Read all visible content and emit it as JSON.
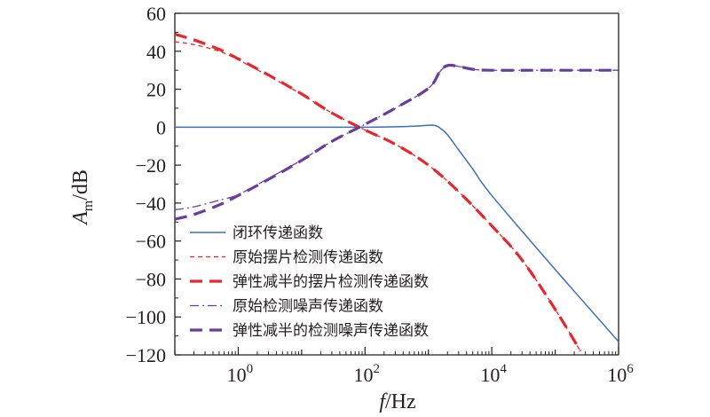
{
  "chart_data": {
    "type": "line",
    "title": "",
    "xlabel": "f/Hz",
    "xlabel_italic": "f",
    "xlabel_rest": "/Hz",
    "ylabel_italic": "A",
    "ylabel_sub": "m",
    "ylabel_rest": "/dB",
    "xscale": "log",
    "xlim": [
      0.1,
      1000000
    ],
    "ylim": [
      -120,
      60
    ],
    "grid": false,
    "legend_position": "lower-left",
    "y_ticks": [
      60,
      40,
      20,
      0,
      -20,
      -40,
      -60,
      -80,
      -100,
      -120
    ],
    "y_tick_labels": [
      "60",
      "40",
      "20",
      "0",
      "−20",
      "−40",
      "−60",
      "−80",
      "−100",
      "−120"
    ],
    "x_major_ticks": [
      1,
      100,
      10000,
      1000000
    ],
    "x_tick_base": "10",
    "x_tick_exponents": [
      "0",
      "2",
      "4",
      "6"
    ],
    "series": [
      {
        "name": "闭环传递函数",
        "color": "#3b6fb6",
        "style": "solid",
        "width": 1.5,
        "x": [
          0.1,
          1,
          10,
          100,
          300,
          600,
          1000,
          1300,
          1600,
          2000,
          3000,
          5000,
          10000,
          100000,
          1000000
        ],
        "y": [
          0,
          0,
          0,
          0,
          0.2,
          0.5,
          1,
          0.8,
          -1,
          -4,
          -12,
          -22,
          -36,
          -75,
          -113
        ]
      },
      {
        "name": "原始摆片检测传递函数",
        "color": "#e8262d",
        "style": "thin-dash",
        "width": 1.3,
        "x": [
          0.1,
          0.2,
          0.5,
          1,
          3,
          10,
          30,
          100,
          300,
          1000,
          3000,
          10000,
          30000,
          100000,
          250000
        ],
        "y": [
          45,
          43.5,
          40,
          35.5,
          27,
          17.3,
          7.5,
          -1.5,
          -9,
          -20,
          -34,
          -52,
          -70,
          -96,
          -118
        ]
      },
      {
        "name": "弹性减半的摆片检测传递函数",
        "color": "#e8262d",
        "style": "thick-dash",
        "width": 3.2,
        "x": [
          0.1,
          0.2,
          0.5,
          1,
          3,
          10,
          30,
          100,
          300,
          1000,
          3000,
          10000,
          30000,
          100000,
          250000
        ],
        "y": [
          49,
          46,
          41,
          36,
          27.5,
          17.5,
          7.5,
          -1.5,
          -9,
          -20,
          -34,
          -52,
          -70,
          -96,
          -118
        ]
      },
      {
        "name": "原始检测噪声传递函数",
        "color": "#6a3d9a",
        "style": "dash-dot",
        "width": 1.3,
        "x": [
          0.1,
          0.2,
          0.5,
          1,
          3,
          10,
          30,
          100,
          300,
          1000,
          1500,
          2000,
          3000,
          5000,
          10000,
          100000,
          1000000
        ],
        "y": [
          -43.5,
          -42,
          -38.5,
          -35.5,
          -27,
          -17.3,
          -7.5,
          1.5,
          10,
          20.5,
          29,
          32.5,
          32,
          30.5,
          30,
          30,
          30
        ]
      },
      {
        "name": "弹性减半的检测噪声传递函数",
        "color": "#6a3d9a",
        "style": "thick-dash",
        "width": 3.2,
        "x": [
          0.1,
          0.2,
          0.5,
          1,
          3,
          10,
          30,
          100,
          300,
          1000,
          1500,
          2000,
          3000,
          5000,
          10000,
          100000,
          1000000
        ],
        "y": [
          -48.5,
          -46,
          -41,
          -36,
          -27.5,
          -17.5,
          -7.5,
          1.5,
          10,
          20.5,
          29,
          32.5,
          32,
          30.5,
          30,
          30,
          30
        ]
      }
    ]
  }
}
